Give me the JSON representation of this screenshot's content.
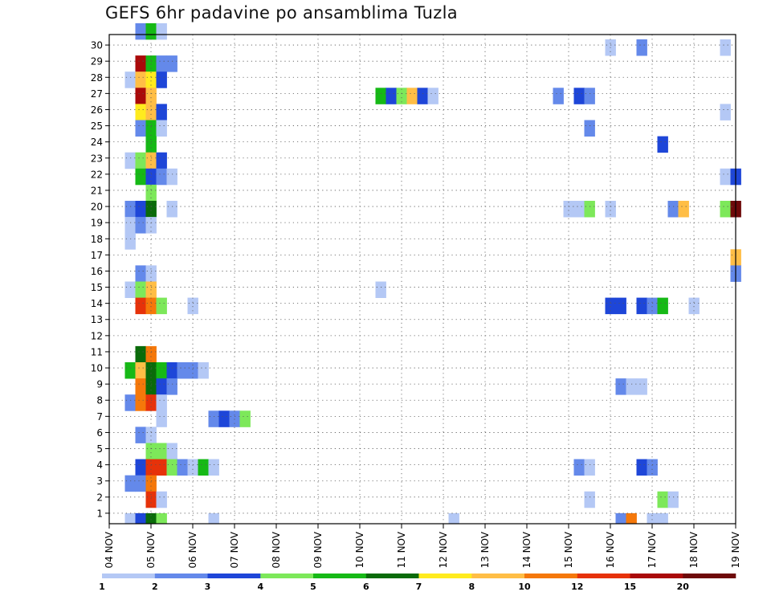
{
  "chart_data": {
    "type": "heatmap",
    "title": "GEFS 6hr padavine po ansamblima Tuzla",
    "xlabel": "",
    "ylabel": "",
    "x_ticks": [
      "04 NOV",
      "05 NOV",
      "06 NOV",
      "07 NOV",
      "08 NOV",
      "09 NOV",
      "10 NOV",
      "11 NOV",
      "12 NOV",
      "13 NOV",
      "14 NOV",
      "15 NOV",
      "16 NOV",
      "17 NOV",
      "18 NOV",
      "19 NOV"
    ],
    "y_ticks": [
      "1",
      "2",
      "3",
      "4",
      "5",
      "6",
      "7",
      "8",
      "9",
      "10",
      "11",
      "12",
      "13",
      "14",
      "15",
      "16",
      "17",
      "18",
      "19",
      "20",
      "21",
      "22",
      "23",
      "24",
      "25",
      "26",
      "27",
      "28",
      "29",
      "30"
    ],
    "x_range_steps": [
      0,
      60
    ],
    "y_range_members": [
      0,
      30
    ],
    "grid": true,
    "colorbar": {
      "labels": [
        "1",
        "2",
        "3",
        "4",
        "5",
        "6",
        "7",
        "8",
        "10",
        "12",
        "15",
        "20"
      ],
      "colors": [
        "#b4c8f5",
        "#6489ea",
        "#1e46d8",
        "#7de85a",
        "#16b916",
        "#0a6b0a",
        "#ffeb1e",
        "#ffbe46",
        "#f5780a",
        "#e6320a",
        "#aa0a0a",
        "#6e0a0a"
      ]
    },
    "cells": [
      {
        "m": 30,
        "t": [
          [
            3,
            "c2"
          ],
          [
            4,
            "c5"
          ],
          [
            5,
            "c1"
          ]
        ]
      },
      {
        "m": 29,
        "t": [
          [
            48,
            "c1"
          ],
          [
            51,
            "c2"
          ],
          [
            59,
            "c1"
          ]
        ]
      },
      {
        "m": 28,
        "t": [
          [
            3,
            "c11"
          ],
          [
            4,
            "c5"
          ],
          [
            5,
            "c2"
          ],
          [
            6,
            "c2"
          ]
        ]
      },
      {
        "m": 27,
        "t": [
          [
            2,
            "c1"
          ],
          [
            3,
            "c8"
          ],
          [
            4,
            "c7"
          ],
          [
            5,
            "c3"
          ]
        ]
      },
      {
        "m": 26,
        "t": [
          [
            3,
            "c11"
          ],
          [
            4,
            "c8"
          ],
          [
            26,
            "c5"
          ],
          [
            27,
            "c3"
          ],
          [
            28,
            "c4"
          ],
          [
            29,
            "c8"
          ],
          [
            30,
            "c3"
          ],
          [
            31,
            "c1"
          ],
          [
            43,
            "c2"
          ],
          [
            45,
            "c3"
          ],
          [
            46,
            "c2"
          ]
        ]
      },
      {
        "m": 25,
        "t": [
          [
            3,
            "c7"
          ],
          [
            4,
            "c8"
          ],
          [
            5,
            "c3"
          ],
          [
            59,
            "c1"
          ]
        ]
      },
      {
        "m": 24,
        "t": [
          [
            3,
            "c2"
          ],
          [
            4,
            "c5"
          ],
          [
            5,
            "c1"
          ],
          [
            46,
            "c2"
          ]
        ]
      },
      {
        "m": 23,
        "t": [
          [
            4,
            "c5"
          ],
          [
            53,
            "c3"
          ]
        ]
      },
      {
        "m": 22,
        "t": [
          [
            2,
            "c1"
          ],
          [
            3,
            "c4"
          ],
          [
            4,
            "c8"
          ],
          [
            5,
            "c3"
          ]
        ]
      },
      {
        "m": 21,
        "t": [
          [
            3,
            "c5"
          ],
          [
            4,
            "c3"
          ],
          [
            5,
            "c2"
          ],
          [
            6,
            "c1"
          ],
          [
            59,
            "c1"
          ],
          [
            60,
            "c3"
          ]
        ]
      },
      {
        "m": 20,
        "t": [
          [
            4,
            "c4"
          ]
        ]
      },
      {
        "m": 19,
        "t": [
          [
            2,
            "c2"
          ],
          [
            3,
            "c3"
          ],
          [
            4,
            "c6"
          ],
          [
            6,
            "c1"
          ],
          [
            44,
            "c1"
          ],
          [
            45,
            "c1"
          ],
          [
            46,
            "c4"
          ],
          [
            48,
            "c1"
          ],
          [
            54,
            "c2"
          ],
          [
            55,
            "c8"
          ],
          [
            59,
            "c4"
          ],
          [
            60,
            "c12"
          ]
        ]
      },
      {
        "m": 18,
        "t": [
          [
            2,
            "c1"
          ],
          [
            3,
            "c2"
          ],
          [
            4,
            "c1"
          ]
        ]
      },
      {
        "m": 17,
        "t": [
          [
            2,
            "c1"
          ]
        ]
      },
      {
        "m": 16,
        "t": [
          [
            60,
            "c8"
          ]
        ]
      },
      {
        "m": 15,
        "t": [
          [
            3,
            "c2"
          ],
          [
            4,
            "c1"
          ],
          [
            60,
            "c2"
          ]
        ]
      },
      {
        "m": 14,
        "t": [
          [
            2,
            "c1"
          ],
          [
            3,
            "c4"
          ],
          [
            4,
            "c8"
          ],
          [
            26,
            "c1"
          ]
        ]
      },
      {
        "m": 13,
        "t": [
          [
            3,
            "c10"
          ],
          [
            4,
            "c9"
          ],
          [
            5,
            "c4"
          ],
          [
            8,
            "c1"
          ],
          [
            48,
            "c3"
          ],
          [
            49,
            "c3"
          ],
          [
            51,
            "c3"
          ],
          [
            52,
            "c2"
          ],
          [
            53,
            "c5"
          ],
          [
            56,
            "c1"
          ]
        ]
      },
      {
        "m": 10,
        "t": [
          [
            3,
            "c6"
          ],
          [
            4,
            "c9"
          ]
        ]
      },
      {
        "m": 9,
        "t": [
          [
            2,
            "c5"
          ],
          [
            3,
            "c8"
          ],
          [
            4,
            "c6"
          ],
          [
            5,
            "c5"
          ],
          [
            6,
            "c3"
          ],
          [
            7,
            "c2"
          ],
          [
            8,
            "c2"
          ],
          [
            9,
            "c1"
          ]
        ]
      },
      {
        "m": 8,
        "t": [
          [
            3,
            "c9"
          ],
          [
            4,
            "c6"
          ],
          [
            5,
            "c3"
          ],
          [
            6,
            "c2"
          ],
          [
            49,
            "c2"
          ],
          [
            50,
            "c1"
          ],
          [
            51,
            "c1"
          ]
        ]
      },
      {
        "m": 7,
        "t": [
          [
            2,
            "c2"
          ],
          [
            3,
            "c9"
          ],
          [
            4,
            "c10"
          ],
          [
            5,
            "c1"
          ]
        ]
      },
      {
        "m": 6,
        "t": [
          [
            5,
            "c1"
          ],
          [
            10,
            "c2"
          ],
          [
            11,
            "c3"
          ],
          [
            12,
            "c2"
          ],
          [
            13,
            "c4"
          ]
        ]
      },
      {
        "m": 5,
        "t": [
          [
            3,
            "c2"
          ],
          [
            4,
            "c1"
          ]
        ]
      },
      {
        "m": 4,
        "t": [
          [
            4,
            "c4"
          ],
          [
            5,
            "c4"
          ],
          [
            6,
            "c1"
          ]
        ]
      },
      {
        "m": 3,
        "t": [
          [
            3,
            "c3"
          ],
          [
            4,
            "c10"
          ],
          [
            5,
            "c10"
          ],
          [
            6,
            "c4"
          ],
          [
            7,
            "c2"
          ],
          [
            8,
            "c1"
          ],
          [
            9,
            "c5"
          ],
          [
            10,
            "c1"
          ],
          [
            45,
            "c2"
          ],
          [
            46,
            "c1"
          ],
          [
            51,
            "c3"
          ],
          [
            52,
            "c2"
          ]
        ]
      },
      {
        "m": 2,
        "t": [
          [
            2,
            "c2"
          ],
          [
            3,
            "c2"
          ],
          [
            4,
            "c9"
          ]
        ]
      },
      {
        "m": 1,
        "t": [
          [
            4,
            "c10"
          ],
          [
            5,
            "c1"
          ],
          [
            46,
            "c1"
          ],
          [
            53,
            "c4"
          ],
          [
            54,
            "c1"
          ]
        ]
      },
      {
        "m": 0,
        "t": [
          [
            2,
            "c1"
          ],
          [
            3,
            "c3"
          ],
          [
            4,
            "c6"
          ],
          [
            5,
            "c4"
          ],
          [
            10,
            "c1"
          ],
          [
            33,
            "c1"
          ],
          [
            49,
            "c2"
          ],
          [
            50,
            "c9"
          ],
          [
            52,
            "c1"
          ],
          [
            53,
            "c1"
          ]
        ]
      }
    ]
  }
}
